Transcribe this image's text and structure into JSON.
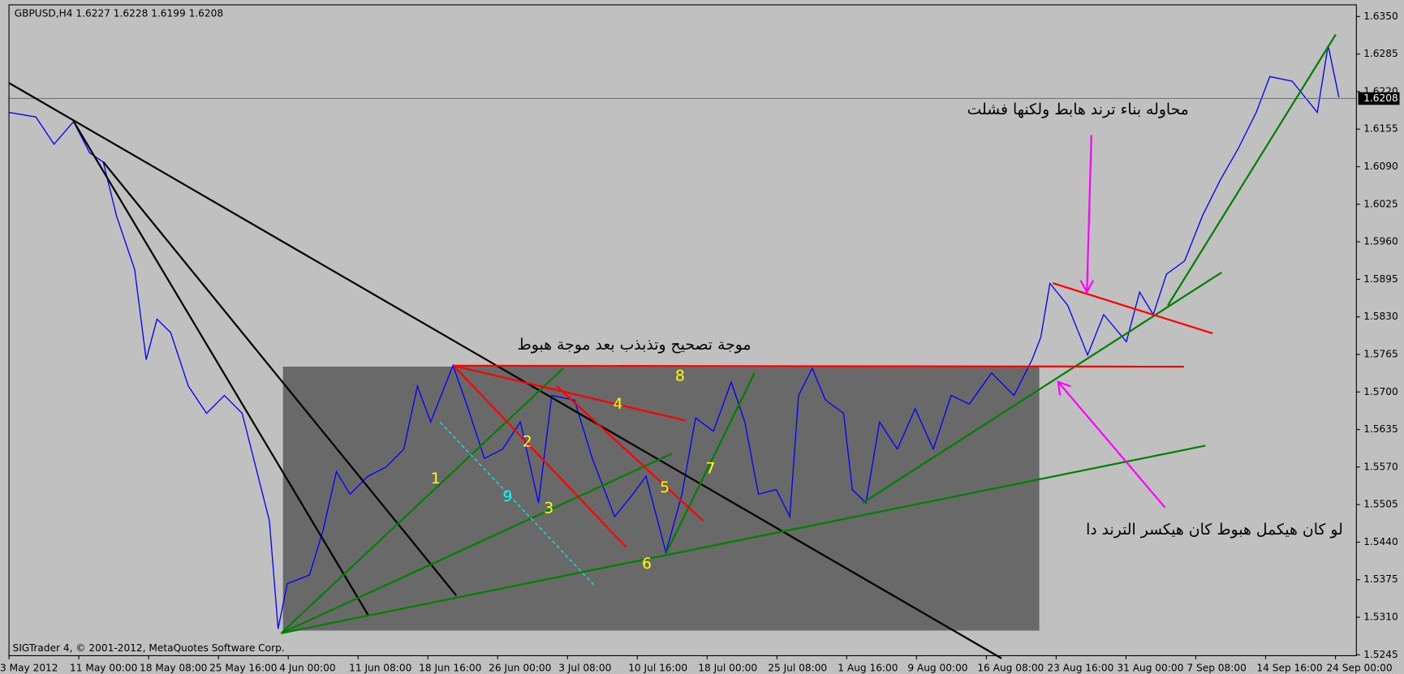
{
  "chart_data": {
    "type": "line",
    "title": "GBPUSD,H4  1.6227 1.6228 1.6199 1.6208",
    "footer": "SIGTrader 4, © 2001-2012, MetaQuotes Software Corp.",
    "color": "#0000ff",
    "x": [
      0,
      7.7,
      12.9,
      18.5,
      23.1,
      27,
      30.8,
      36,
      39.3,
      42.4,
      46.3,
      51.4,
      56.6,
      61.7,
      66.8,
      70.7,
      74.6,
      77.1,
      79.7,
      86.1,
      90,
      93.8,
      97.7,
      102.8,
      108,
      113.1,
      117,
      120.8,
      127.2,
      131.1,
      136.2,
      141.4,
      146.5,
      151.7,
      155.5,
      162,
      167.1,
      173.5,
      178.7,
      182.5,
      188.2,
      192.8,
      196.7,
      201.8,
      206.9,
      210.8,
      214.7,
      219.8,
      223.7,
      226.2,
      230.1,
      233.9,
      239.1,
      241.6,
      245.5,
      249.4,
      254.5,
      259.6,
      264.8,
      269.9,
      275.1,
      281.5,
      287.9,
      293.1,
      295.6,
      298.2,
      303.3,
      309,
      313.6,
      320.1,
      323.9,
      327.8,
      331.6,
      336.8,
      341.9,
      347,
      352.2,
      357.3,
      361.2,
      367.6,
      374.8,
      377.9,
      381
    ],
    "values": [
      1.6184,
      1.6176,
      1.6129,
      1.6168,
      1.6114,
      1.6098,
      1.6005,
      1.5912,
      1.5756,
      1.5826,
      1.5803,
      1.571,
      1.5663,
      1.5694,
      1.5663,
      1.557,
      1.5477,
      1.529,
      1.5368,
      1.5383,
      1.5461,
      1.5562,
      1.5523,
      1.5554,
      1.557,
      1.5601,
      1.571,
      1.5648,
      1.5746,
      1.5679,
      1.5585,
      1.5601,
      1.5648,
      1.5508,
      1.5694,
      1.5686,
      1.5585,
      1.5484,
      1.5523,
      1.5554,
      1.5422,
      1.5523,
      1.5655,
      1.5632,
      1.5717,
      1.5648,
      1.5523,
      1.5531,
      1.5484,
      1.5694,
      1.5741,
      1.5686,
      1.5663,
      1.5531,
      1.5508,
      1.5648,
      1.5601,
      1.5671,
      1.5601,
      1.5694,
      1.5679,
      1.5733,
      1.5694,
      1.5756,
      1.5795,
      1.5888,
      1.585,
      1.5764,
      1.5834,
      1.5787,
      1.5873,
      1.5834,
      1.5904,
      1.5927,
      1.6005,
      1.6067,
      1.6122,
      1.6184,
      1.6246,
      1.6238,
      1.6184,
      1.63,
      1.621
    ],
    "xlim": [
      0,
      386
    ],
    "xticks": [
      {
        "value": 0,
        "label": "3 May 2012"
      },
      {
        "value": 20,
        "label": "11 May 00:00"
      },
      {
        "value": 40,
        "label": "18 May 08:00"
      },
      {
        "value": 60,
        "label": "25 May 16:00"
      },
      {
        "value": 80,
        "label": "4 Jun 00:00"
      },
      {
        "value": 100,
        "label": "11 Jun 08:00"
      },
      {
        "value": 120,
        "label": "18 Jun 16:00"
      },
      {
        "value": 140,
        "label": "26 Jun 00:00"
      },
      {
        "value": 160,
        "label": "3 Jul 08:00"
      },
      {
        "value": 180,
        "label": "10 Jul 16:00"
      },
      {
        "value": 200,
        "label": "18 Jul 00:00"
      },
      {
        "value": 220,
        "label": "25 Jul 08:00"
      },
      {
        "value": 240,
        "label": "1 Aug 16:00"
      },
      {
        "value": 260,
        "label": "9 Aug 00:00"
      },
      {
        "value": 280,
        "label": "16 Aug 08:00"
      },
      {
        "value": 300,
        "label": "23 Aug 16:00"
      },
      {
        "value": 320,
        "label": "31 Aug 00:00"
      },
      {
        "value": 340,
        "label": "7 Sep 08:00"
      },
      {
        "value": 360,
        "label": "14 Sep 16:00"
      },
      {
        "value": 380,
        "label": "24 Sep 00:00"
      }
    ],
    "ylim": [
      1.5245,
      1.635
    ],
    "yticks": [
      {
        "value": 1.635,
        "label": "1.6350"
      },
      {
        "value": 1.6285,
        "label": "1.6285"
      },
      {
        "value": 1.622,
        "label": "1.6220"
      },
      {
        "value": 1.6155,
        "label": "1.6155"
      },
      {
        "value": 1.609,
        "label": "1.6090"
      },
      {
        "value": 1.6025,
        "label": "1.6025"
      },
      {
        "value": 1.596,
        "label": "1.5960"
      },
      {
        "value": 1.5895,
        "label": "1.5895"
      },
      {
        "value": 1.583,
        "label": "1.5830"
      },
      {
        "value": 1.5765,
        "label": "1.5765"
      },
      {
        "value": 1.57,
        "label": "1.5700"
      },
      {
        "value": 1.5635,
        "label": "1.5635"
      },
      {
        "value": 1.557,
        "label": "1.5570"
      },
      {
        "value": 1.5505,
        "label": "1.5505"
      },
      {
        "value": 1.544,
        "label": "1.5440"
      },
      {
        "value": 1.5375,
        "label": "1.5375"
      },
      {
        "value": 1.531,
        "label": "1.5310"
      },
      {
        "value": 1.5245,
        "label": "1.5245"
      }
    ],
    "last_price": {
      "value": 1.6208,
      "label": "1.6208"
    },
    "annotations": [
      "محاوله  بناء ترند هابط ولكنها فشلت",
      "موجة تصحيح  وتذبذب بعد موجة هبوط",
      "لو كان هيكمل هبوط كان هيكسر الترند دا",
      "1",
      "2",
      "3",
      "4",
      "5",
      "6",
      "7",
      "8",
      "9"
    ]
  }
}
